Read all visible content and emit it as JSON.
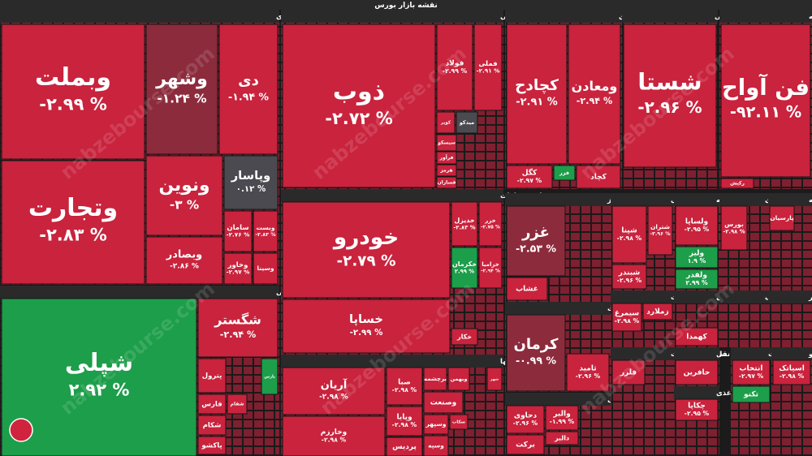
{
  "title": "نقشه بازار بورس",
  "watermark": "nabzebourse.com",
  "sectors": [
    {
      "name": "بانکها و موسسات اعتباری",
      "tiles": [
        {
          "symbol": "وبملت",
          "change": "-۲.۹۹ %"
        },
        {
          "symbol": "وتجارت",
          "change": "-۲.۸۳ %"
        },
        {
          "symbol": "وشهر",
          "change": "-۱.۲۴ %"
        },
        {
          "symbol": "دی",
          "change": "-۱.۹۴ %"
        },
        {
          "symbol": "ونوین",
          "change": "-۳ %"
        },
        {
          "symbol": "وپاسار",
          "change": "۰.۱۲ %"
        },
        {
          "symbol": "سامان",
          "change": "-۲.۷۶ %"
        },
        {
          "symbol": "وبست",
          "change": "-۲.۸۳ %"
        },
        {
          "symbol": "وبصادر",
          "change": "-۲.۸۶ %"
        },
        {
          "symbol": "وخاور",
          "change": "-۲.۹۷ %"
        },
        {
          "symbol": "وسینا"
        }
      ]
    },
    {
      "name": "محصولات شیمیایی",
      "tiles": [
        {
          "symbol": "شپلی",
          "change": "۲.۹۲ %"
        },
        {
          "symbol": "شگستر",
          "change": "-۲.۹۴ %"
        },
        {
          "symbol": "پترول"
        },
        {
          "symbol": "پارس"
        },
        {
          "symbol": "فارس"
        },
        {
          "symbol": "شفام"
        },
        {
          "symbol": "شکام"
        },
        {
          "symbol": "پاکشو"
        }
      ]
    },
    {
      "name": "فلزات اساسی",
      "tiles": [
        {
          "symbol": "ذوب",
          "change": "-۲.۷۲ %"
        },
        {
          "symbol": "فولاد",
          "change": "-۲.۹۹ %"
        },
        {
          "symbol": "فملی",
          "change": "-۲.۹۱ %"
        },
        {
          "symbol": "کویر"
        },
        {
          "symbol": "میدکو"
        },
        {
          "symbol": "سیسکو"
        },
        {
          "symbol": "فرآور"
        },
        {
          "symbol": "هرمز"
        },
        {
          "symbol": "فسازان"
        }
      ]
    },
    {
      "name": "خودرو و ساخت قطعات",
      "tiles": [
        {
          "symbol": "خودرو",
          "change": "-۲.۷۹ %"
        },
        {
          "symbol": "خساپا",
          "change": "-۲.۹۹ %"
        },
        {
          "symbol": "خدیزل",
          "change": "-۲.۸۳ %"
        },
        {
          "symbol": "خزر",
          "change": "-۲.۷۵ %"
        },
        {
          "symbol": "خکرمان",
          "change": "۲.۹۹ %"
        },
        {
          "symbol": "خزامیا",
          "change": "-۲.۹۴ %"
        },
        {
          "symbol": "خکار"
        }
      ]
    },
    {
      "name": "سرمایه گذاریها",
      "tiles": [
        {
          "symbol": "آریان",
          "change": "-۲.۹۸ %"
        },
        {
          "symbol": "وخارزم",
          "change": "-۲.۹۸ %"
        },
        {
          "symbol": "صبا",
          "change": "-۲.۹۸ %"
        },
        {
          "symbol": "وپایا",
          "change": "-۲.۹۸ %"
        },
        {
          "symbol": "پردیس"
        },
        {
          "symbol": "برچشمه"
        },
        {
          "symbol": "وبهمن"
        },
        {
          "symbol": "شهر"
        },
        {
          "symbol": "وصنعت"
        },
        {
          "symbol": "وسپهر"
        },
        {
          "symbol": "سکاب"
        },
        {
          "symbol": "وسپه"
        }
      ]
    },
    {
      "name": "استخراج کانه های فلزی",
      "tiles": [
        {
          "symbol": "کچادح",
          "change": "-۲.۹۱ %"
        },
        {
          "symbol": "ومعادن",
          "change": "-۲.۹۴ %"
        },
        {
          "symbol": "کگل",
          "change": "-۲.۹۷ %"
        },
        {
          "symbol": "فزر"
        },
        {
          "symbol": "کچاد"
        }
      ]
    },
    {
      "name": "شرکتهای چند رشته ای صنعتی",
      "tiles": [
        {
          "symbol": "شستا",
          "change": "-۲.۹۶ %"
        }
      ]
    },
    {
      "name": "رایانه و فعالیتهای وابسته به",
      "tiles": [
        {
          "symbol": "فن آواح",
          "change": "-۹۲.۱۱ %"
        },
        {
          "symbol": "رکیش"
        }
      ]
    },
    {
      "name": "محصولات غذایی و آشامیدنی به جز",
      "tiles": [
        {
          "symbol": "غزر",
          "change": "-۲.۵۳ %"
        },
        {
          "symbol": "غشاب"
        }
      ]
    },
    {
      "name": "انبوه سازی، املاک و مستغلات",
      "tiles": [
        {
          "symbol": "کرمان",
          "change": "-۰.۹۹ %"
        },
        {
          "symbol": "ثامید",
          "change": "-۲.۹۶ %"
        }
      ]
    },
    {
      "name": "مواد و محصولات دارویی",
      "tiles": [
        {
          "symbol": "دحاوی",
          "change": "-۲.۹۶ %"
        },
        {
          "symbol": "والبر",
          "change": "-۱.۹۹ %"
        },
        {
          "symbol": "برکت"
        },
        {
          "symbol": "دالبر"
        }
      ]
    },
    {
      "name": "فراورده های نفتی",
      "tiles": [
        {
          "symbol": "شپنا",
          "change": "-۲.۹۸ %"
        },
        {
          "symbol": "شتران",
          "change": "-۲.۹۶ %"
        },
        {
          "symbol": "شبندر",
          "change": "-۲.۹۶ %"
        }
      ]
    },
    {
      "name": "زراعت و خدمات",
      "tiles": [
        {
          "symbol": "سیمرغ",
          "change": "-۲.۹۸ %"
        },
        {
          "symbol": "زملارد"
        }
      ]
    },
    {
      "name": "ساخت محصولات",
      "tiles": [
        {
          "symbol": "فلزر"
        }
      ]
    },
    {
      "name": "سایر واسطه",
      "tiles": [
        {
          "symbol": "ولساپا",
          "change": "-۲.۹۵ %"
        },
        {
          "symbol": "ولیز",
          "change": "۱.۹ %"
        },
        {
          "symbol": "ولقدر",
          "change": "۲.۹۹ %"
        }
      ]
    },
    {
      "name": "سایر مالی",
      "tiles": [
        {
          "symbol": "کهمدا"
        }
      ]
    },
    {
      "name": "حمل و نقل",
      "tiles": [
        {
          "symbol": "حافرین"
        }
      ]
    },
    {
      "name": "محصولات کاغذی",
      "tiles": [
        {
          "symbol": "چکاپا",
          "change": "-۲.۹۵ %"
        }
      ]
    },
    {
      "name": "فعالیتهای",
      "tiles": [
        {
          "symbol": "بورس",
          "change": "-۲.۹۸ %"
        }
      ]
    },
    {
      "name": "بیمه",
      "tiles": [
        {
          "symbol": "پارسیان"
        }
      ]
    },
    {
      "name": "سیمان، آهک",
      "tiles": []
    },
    {
      "name": "قند و شکر",
      "tiles": []
    },
    {
      "name": "ماشین آلات",
      "tiles": [
        {
          "symbol": "انتخاب",
          "change": "-۲.۹۷ %"
        },
        {
          "symbol": "تکنو"
        }
      ]
    },
    {
      "name": "اطلاعات و",
      "tiles": [
        {
          "symbol": "اسیاتک",
          "change": "-۲.۹۸ %"
        }
      ]
    }
  ]
}
